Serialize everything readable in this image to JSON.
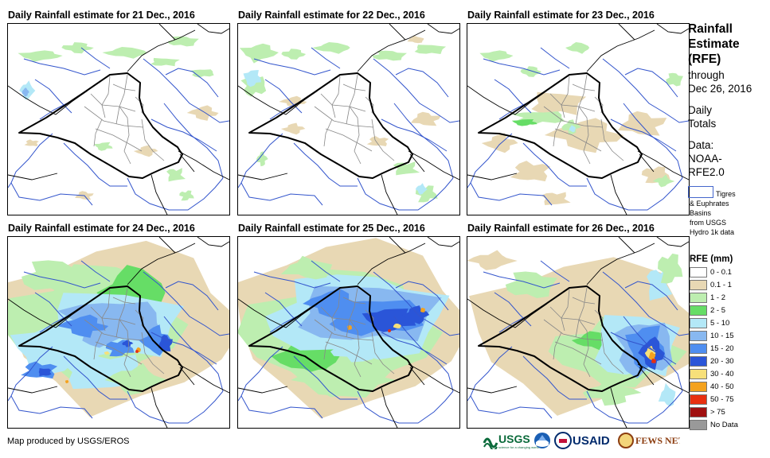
{
  "panels": [
    {
      "title": "Daily Rainfall estimate for 21 Dec., 2016"
    },
    {
      "title": "Daily Rainfall estimate for 22 Dec., 2016"
    },
    {
      "title": "Daily Rainfall estimate for 23 Dec., 2016"
    },
    {
      "title": "Daily Rainfall estimate for 24 Dec., 2016"
    },
    {
      "title": "Daily Rainfall estimate for 25 Dec., 2016"
    },
    {
      "title": "Daily Rainfall estimate for 26 Dec., 2016"
    }
  ],
  "legend": {
    "title_lines": [
      "Rainfall",
      "Estimate",
      "(RFE)"
    ],
    "through": "through",
    "date": "Dec 26, 2016",
    "daily1": "Daily",
    "daily2": "Totals",
    "data1": "Data:",
    "data2": "NOAA-",
    "data3": "RFE2.0",
    "basin_lines": [
      "Tigres",
      "& Euphrates",
      "Basins",
      "from USGS",
      "Hydro 1k data"
    ],
    "rfe_header": "RFE (mm)",
    "classes": [
      {
        "label": "0 - 0.1",
        "color": "#ffffff"
      },
      {
        "label": "0.1 - 1",
        "color": "#e8d8b4"
      },
      {
        "label": "1 - 2",
        "color": "#bdeeb0"
      },
      {
        "label": "2 - 5",
        "color": "#66dd66"
      },
      {
        "label": "5 - 10",
        "color": "#b3e8f7"
      },
      {
        "label": "10 - 15",
        "color": "#88b8f0"
      },
      {
        "label": "15 - 20",
        "color": "#4f8ef0"
      },
      {
        "label": "20 - 30",
        "color": "#2a55d8"
      },
      {
        "label": "30 - 40",
        "color": "#f7e07a"
      },
      {
        "label": "40 - 50",
        "color": "#f4a21e"
      },
      {
        "label": "50 - 75",
        "color": "#e83010"
      },
      {
        "label": "> 75",
        "color": "#a01010"
      },
      {
        "label": "No Data",
        "color": "#999999"
      }
    ]
  },
  "footer": {
    "credit": "Map produced by USGS/EROS",
    "logo_usgs": "USGS",
    "logo_usgs_tagline": "science for a changing world",
    "logo_usaid": "USAID",
    "logo_fews": "FEWS NET"
  },
  "colors": {
    "border": "#000000",
    "basin": "#3355cc",
    "internal": "#888888"
  }
}
